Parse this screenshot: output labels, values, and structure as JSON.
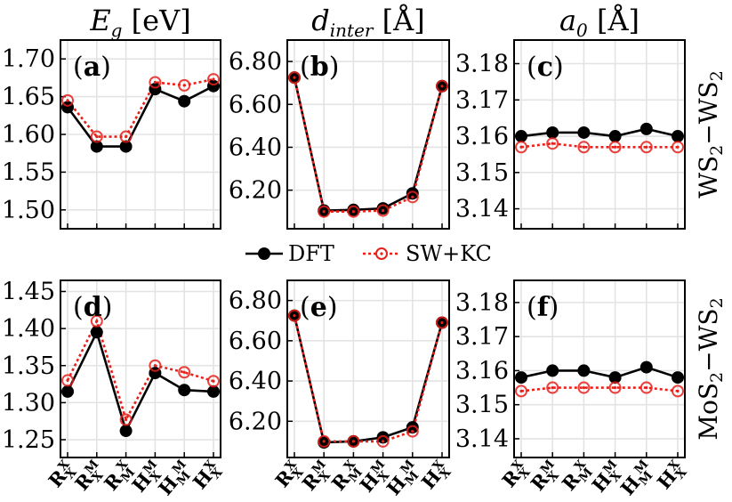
{
  "chart_data": {
    "type": "line",
    "categories": [
      "R_X^X",
      "R_X^M",
      "R_M^X",
      "H_X^M",
      "H_M^M",
      "H_X^X"
    ],
    "category_labels": [
      {
        "base": "R",
        "sup": "X",
        "sub": "X"
      },
      {
        "base": "R",
        "sup": "M",
        "sub": "X"
      },
      {
        "base": "R",
        "sup": "X",
        "sub": "M"
      },
      {
        "base": "H",
        "sup": "M",
        "sub": "X"
      },
      {
        "base": "H",
        "sup": "M",
        "sub": "M"
      },
      {
        "base": "H",
        "sup": "X",
        "sub": "X"
      }
    ],
    "legend": {
      "dft": "DFT",
      "swkc": "SW+KC"
    },
    "colors": {
      "dft": "#000000",
      "swkc": "#e8201b"
    },
    "columns": [
      {
        "title": {
          "main": "E",
          "sub": "g",
          "unit": "[eV]"
        }
      },
      {
        "title": {
          "main": "d",
          "sub": "inter",
          "unit": "[Å]"
        }
      },
      {
        "title": {
          "main": "a",
          "sub": "0",
          "unit": "[Å]"
        }
      }
    ],
    "rows": [
      {
        "label": {
          "a": "WS",
          "a_sub": "2",
          "sep": "−",
          "b": "WS",
          "b_sub": "2"
        }
      },
      {
        "label": {
          "a": "MoS",
          "a_sub": "2",
          "sep": "−",
          "b": "WS",
          "b_sub": "2"
        }
      }
    ],
    "panels": [
      {
        "label": "a",
        "ylim": [
          1.475,
          1.725
        ],
        "yticks": [
          1.5,
          1.55,
          1.6,
          1.65,
          1.7
        ],
        "yticklabels": [
          "1.50",
          "1.55",
          "1.60",
          "1.65",
          "1.70"
        ],
        "series": [
          {
            "name": "DFT",
            "values": [
              1.636,
              1.584,
              1.584,
              1.66,
              1.644,
              1.664
            ]
          },
          {
            "name": "SW+KC",
            "values": [
              1.645,
              1.597,
              1.597,
              1.669,
              1.665,
              1.673
            ]
          }
        ]
      },
      {
        "label": "b",
        "ylim": [
          6.02,
          6.9
        ],
        "yticks": [
          6.2,
          6.4,
          6.6,
          6.8
        ],
        "yticklabels": [
          "6.20",
          "6.40",
          "6.60",
          "6.80"
        ],
        "series": [
          {
            "name": "DFT",
            "values": [
              6.725,
              6.105,
              6.108,
              6.115,
              6.185,
              6.685
            ]
          },
          {
            "name": "SW+KC",
            "values": [
              6.725,
              6.1,
              6.1,
              6.105,
              6.168,
              6.685
            ]
          }
        ]
      },
      {
        "label": "c",
        "ylim": [
          3.1345,
          3.1865
        ],
        "yticks": [
          3.14,
          3.15,
          3.16,
          3.17,
          3.18
        ],
        "yticklabels": [
          "3.14",
          "3.15",
          "3.16",
          "3.17",
          "3.18"
        ],
        "series": [
          {
            "name": "DFT",
            "values": [
              3.16,
              3.161,
              3.161,
              3.16,
              3.162,
              3.16
            ]
          },
          {
            "name": "SW+KC",
            "values": [
              3.157,
              3.158,
              3.157,
              3.157,
              3.157,
              3.157
            ]
          }
        ]
      },
      {
        "label": "d",
        "ylim": [
          1.226,
          1.465
        ],
        "yticks": [
          1.25,
          1.3,
          1.35,
          1.4,
          1.45
        ],
        "yticklabels": [
          "1.25",
          "1.30",
          "1.35",
          "1.40",
          "1.45"
        ],
        "series": [
          {
            "name": "DFT",
            "values": [
              1.315,
              1.395,
              1.262,
              1.34,
              1.317,
              1.315
            ]
          },
          {
            "name": "SW+KC",
            "values": [
              1.33,
              1.41,
              1.277,
              1.35,
              1.341,
              1.329
            ]
          }
        ]
      },
      {
        "label": "e",
        "ylim": [
          6.02,
          6.9
        ],
        "yticks": [
          6.2,
          6.4,
          6.6,
          6.8
        ],
        "yticklabels": [
          "6.20",
          "6.40",
          "6.60",
          "6.80"
        ],
        "series": [
          {
            "name": "DFT",
            "values": [
              6.725,
              6.095,
              6.1,
              6.12,
              6.17,
              6.69
            ]
          },
          {
            "name": "SW+KC",
            "values": [
              6.725,
              6.1,
              6.1,
              6.1,
              6.15,
              6.69
            ]
          }
        ]
      },
      {
        "label": "f",
        "ylim": [
          3.1345,
          3.1865
        ],
        "yticks": [
          3.14,
          3.15,
          3.16,
          3.17,
          3.18
        ],
        "yticklabels": [
          "3.14",
          "3.15",
          "3.16",
          "3.17",
          "3.18"
        ],
        "series": [
          {
            "name": "DFT",
            "values": [
              3.158,
              3.16,
              3.16,
              3.158,
              3.161,
              3.158
            ]
          },
          {
            "name": "SW+KC",
            "values": [
              3.154,
              3.155,
              3.155,
              3.155,
              3.155,
              3.154
            ]
          }
        ]
      }
    ]
  }
}
